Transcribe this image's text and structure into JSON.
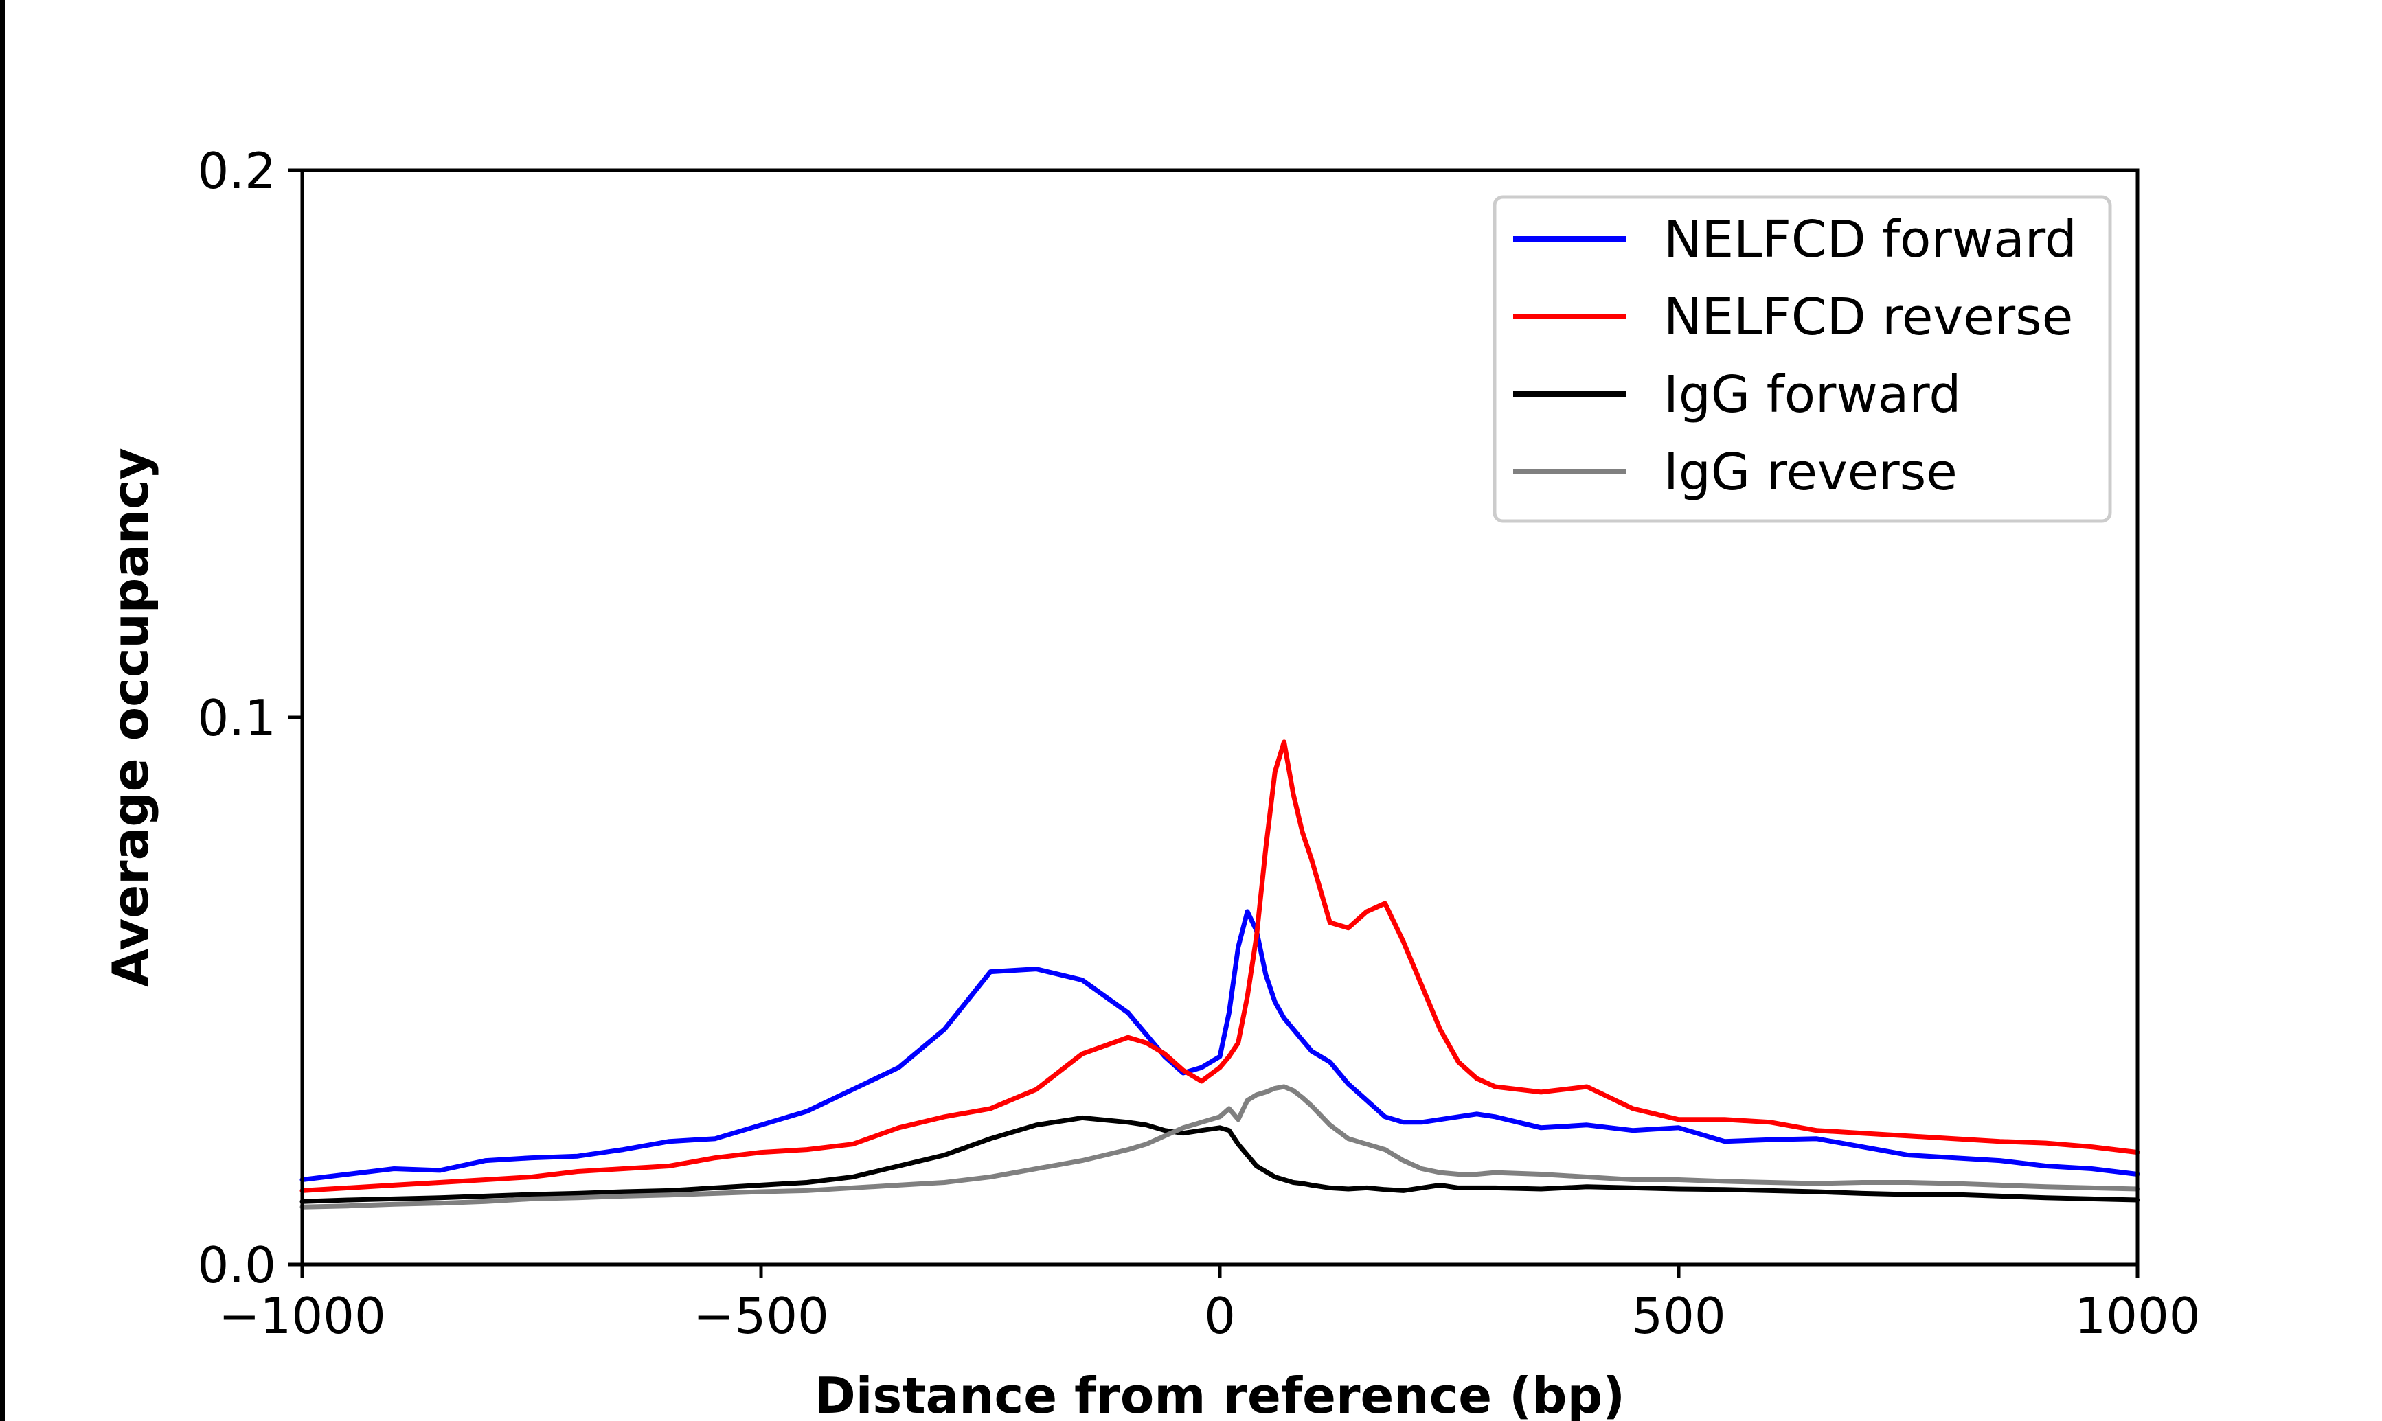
{
  "chart_data": {
    "type": "line",
    "xlabel": "Distance from reference (bp)",
    "ylabel": "Average occupancy",
    "xlim": [
      -1000,
      1000
    ],
    "ylim": [
      0,
      0.2
    ],
    "xticks": [
      -1000,
      -500,
      0,
      500,
      1000
    ],
    "xtick_labels": [
      "−1000",
      "−500",
      "0",
      "500",
      "1000"
    ],
    "yticks": [
      0,
      0.1,
      0.2
    ],
    "ytick_labels": [
      "0.0",
      "0.1",
      "0.2"
    ],
    "grid": false,
    "legend_position": "top-right",
    "x": [
      -1000,
      -950,
      -900,
      -850,
      -800,
      -750,
      -700,
      -650,
      -600,
      -550,
      -500,
      -450,
      -400,
      -350,
      -300,
      -250,
      -200,
      -150,
      -100,
      -80,
      -60,
      -40,
      -20,
      0,
      10,
      20,
      30,
      40,
      50,
      60,
      70,
      80,
      90,
      100,
      120,
      140,
      160,
      180,
      200,
      220,
      240,
      260,
      280,
      300,
      350,
      400,
      450,
      500,
      550,
      600,
      650,
      700,
      750,
      800,
      850,
      900,
      950,
      1000
    ],
    "series": [
      {
        "name": "NELFCD forward",
        "color": "#0000ff",
        "values": [
          0.0155,
          0.0165,
          0.0175,
          0.0172,
          0.019,
          0.0195,
          0.0198,
          0.021,
          0.0225,
          0.023,
          0.0255,
          0.028,
          0.032,
          0.036,
          0.043,
          0.0535,
          0.054,
          0.052,
          0.046,
          0.042,
          0.038,
          0.035,
          0.036,
          0.038,
          0.046,
          0.058,
          0.0645,
          0.061,
          0.053,
          0.048,
          0.045,
          0.043,
          0.041,
          0.039,
          0.037,
          0.033,
          0.03,
          0.027,
          0.026,
          0.026,
          0.0265,
          0.027,
          0.0275,
          0.027,
          0.025,
          0.0255,
          0.0245,
          0.025,
          0.0225,
          0.0228,
          0.023,
          0.0215,
          0.02,
          0.0195,
          0.019,
          0.018,
          0.0175,
          0.0165
        ]
      },
      {
        "name": "NELFCD reverse",
        "color": "#ff0000",
        "values": [
          0.0135,
          0.014,
          0.0145,
          0.015,
          0.0155,
          0.016,
          0.017,
          0.0175,
          0.018,
          0.0195,
          0.0205,
          0.021,
          0.022,
          0.025,
          0.027,
          0.0285,
          0.032,
          0.0385,
          0.0415,
          0.0405,
          0.0385,
          0.0355,
          0.0335,
          0.036,
          0.038,
          0.0405,
          0.049,
          0.06,
          0.076,
          0.09,
          0.0955,
          0.086,
          0.079,
          0.074,
          0.0625,
          0.0615,
          0.0645,
          0.066,
          0.059,
          0.051,
          0.043,
          0.037,
          0.034,
          0.0325,
          0.0315,
          0.0325,
          0.0285,
          0.0265,
          0.0265,
          0.026,
          0.0245,
          0.024,
          0.0235,
          0.023,
          0.0225,
          0.0222,
          0.0215,
          0.0205
        ]
      },
      {
        "name": "IgG forward",
        "color": "#000000",
        "values": [
          0.0115,
          0.0118,
          0.012,
          0.0122,
          0.0125,
          0.0128,
          0.013,
          0.0133,
          0.0135,
          0.014,
          0.0145,
          0.015,
          0.016,
          0.018,
          0.02,
          0.023,
          0.0255,
          0.0268,
          0.026,
          0.0255,
          0.0245,
          0.024,
          0.0245,
          0.025,
          0.0245,
          0.022,
          0.02,
          0.018,
          0.017,
          0.016,
          0.0155,
          0.015,
          0.0148,
          0.0145,
          0.014,
          0.0138,
          0.014,
          0.0137,
          0.0135,
          0.014,
          0.0145,
          0.014,
          0.014,
          0.014,
          0.0138,
          0.0142,
          0.014,
          0.0138,
          0.0137,
          0.0135,
          0.0133,
          0.013,
          0.0128,
          0.0128,
          0.0125,
          0.0122,
          0.012,
          0.0118
        ]
      },
      {
        "name": "IgG reverse",
        "color": "#808080",
        "values": [
          0.0105,
          0.0107,
          0.011,
          0.0112,
          0.0115,
          0.012,
          0.0122,
          0.0125,
          0.0127,
          0.013,
          0.0133,
          0.0135,
          0.014,
          0.0145,
          0.015,
          0.016,
          0.0175,
          0.019,
          0.021,
          0.022,
          0.0235,
          0.025,
          0.026,
          0.027,
          0.0285,
          0.0265,
          0.03,
          0.031,
          0.0315,
          0.0322,
          0.0325,
          0.0318,
          0.0305,
          0.029,
          0.0255,
          0.023,
          0.022,
          0.021,
          0.019,
          0.0175,
          0.0168,
          0.0165,
          0.0165,
          0.0168,
          0.0165,
          0.016,
          0.0155,
          0.0155,
          0.0152,
          0.015,
          0.0148,
          0.015,
          0.015,
          0.0148,
          0.0145,
          0.0142,
          0.014,
          0.0138
        ]
      }
    ]
  }
}
